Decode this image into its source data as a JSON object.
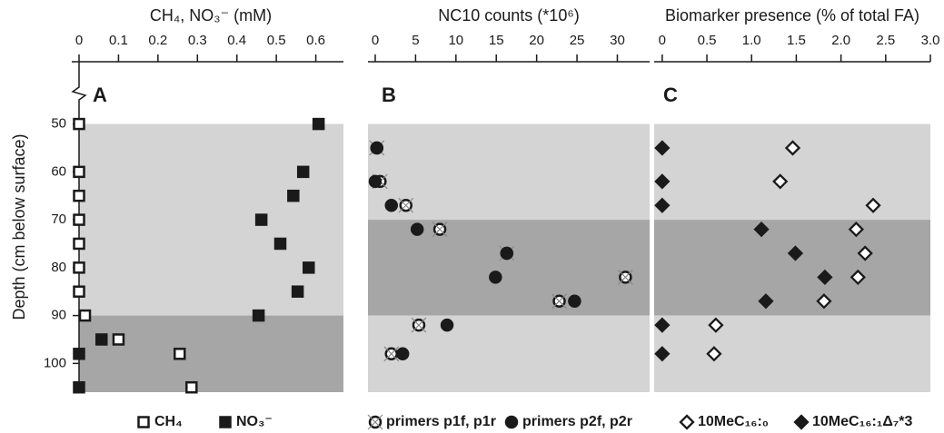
{
  "chart_data": [
    {
      "type": "scatter",
      "title": "CH₄, NO₃⁻ (mM)",
      "annotation": "A",
      "y_label": "Depth (cm below surface)",
      "depth": [
        50,
        60,
        65,
        70,
        75,
        80,
        85,
        90,
        95,
        98,
        105
      ],
      "xlim": [
        0,
        0.67
      ],
      "xticks": [
        0,
        0.1,
        0.2,
        0.3,
        0.4,
        0.5,
        0.6
      ],
      "ylim": [
        37,
        106
      ],
      "yticks": [
        50,
        60,
        70,
        80,
        90,
        100
      ],
      "y_inverted": true,
      "shading": [
        {
          "from": 50,
          "to": 90,
          "color": "#d4d4d4"
        },
        {
          "from": 90,
          "to": 106,
          "color": "#a6a6a6"
        }
      ],
      "series": [
        {
          "name": "CH₄",
          "marker": "open-square",
          "color": "#1a1a1a",
          "values": [
            0,
            0,
            0,
            0,
            0,
            0,
            0,
            0.015,
            0.1,
            0.255,
            0.285
          ]
        },
        {
          "name": "NO₃⁻",
          "marker": "square",
          "color": "#1a1a1a",
          "values": [
            0.607,
            0.568,
            0.543,
            0.462,
            0.51,
            0.582,
            0.554,
            0.455,
            0.057,
            0,
            0
          ]
        }
      ]
    },
    {
      "type": "scatter",
      "title": "NC10 counts (*10⁶)",
      "annotation": "B",
      "depth": [
        55,
        62,
        67,
        72,
        77,
        82,
        87,
        92,
        98
      ],
      "xlim": [
        -0.9,
        34
      ],
      "xticks": [
        0,
        5,
        10,
        15,
        20,
        25,
        30
      ],
      "ylim": [
        37,
        106
      ],
      "y_inverted": true,
      "shading": [
        {
          "from": 50,
          "to": 70,
          "color": "#d4d4d4"
        },
        {
          "from": 70,
          "to": 90,
          "color": "#a6a6a6"
        },
        {
          "from": 90,
          "to": 106,
          "color": "#d4d4d4"
        }
      ],
      "series": [
        {
          "name": "primers p1f, p1r",
          "marker": "open-circle",
          "color": "#1a1a1a",
          "values": [
            0.2,
            0.6,
            3.8,
            8.0,
            16.3,
            31.0,
            22.8,
            5.4,
            2.0
          ]
        },
        {
          "name": "primers p2f, p2r",
          "marker": "circle",
          "color": "#1a1a1a",
          "values": [
            0.2,
            0,
            2.0,
            5.2,
            16.3,
            14.9,
            24.7,
            8.9,
            3.4
          ]
        }
      ]
    },
    {
      "type": "scatter",
      "title": "Biomarker presence (% of total FA)",
      "annotation": "C",
      "depth": [
        55,
        62,
        67,
        72,
        77,
        82,
        87,
        92,
        98
      ],
      "xlim": [
        -0.09,
        3.0
      ],
      "xticks": [
        0,
        0.5,
        {
          "value": 1,
          "label": "1.0"
        },
        1.5,
        {
          "value": 2,
          "label": "2.0"
        },
        2.5,
        {
          "value": 3,
          "label": "3.0"
        }
      ],
      "ylim": [
        37,
        106
      ],
      "y_inverted": true,
      "shading": [
        {
          "from": 50,
          "to": 70,
          "color": "#d4d4d4"
        },
        {
          "from": 70,
          "to": 90,
          "color": "#a6a6a6"
        },
        {
          "from": 90,
          "to": 106,
          "color": "#d4d4d4"
        }
      ],
      "series": [
        {
          "name": "10MeC₁₆:₀",
          "marker": "open-diamond",
          "color": "#1a1a1a",
          "values": [
            1.46,
            1.32,
            2.36,
            2.17,
            2.27,
            2.19,
            1.81,
            0.6,
            0.58
          ]
        },
        {
          "name": "10MeC₁₆:₁Δ₇*3",
          "marker": "diamond",
          "color": "#1a1a1a",
          "values": [
            0,
            0,
            0,
            1.11,
            1.49,
            1.82,
            1.16,
            0,
            0
          ]
        }
      ]
    }
  ]
}
